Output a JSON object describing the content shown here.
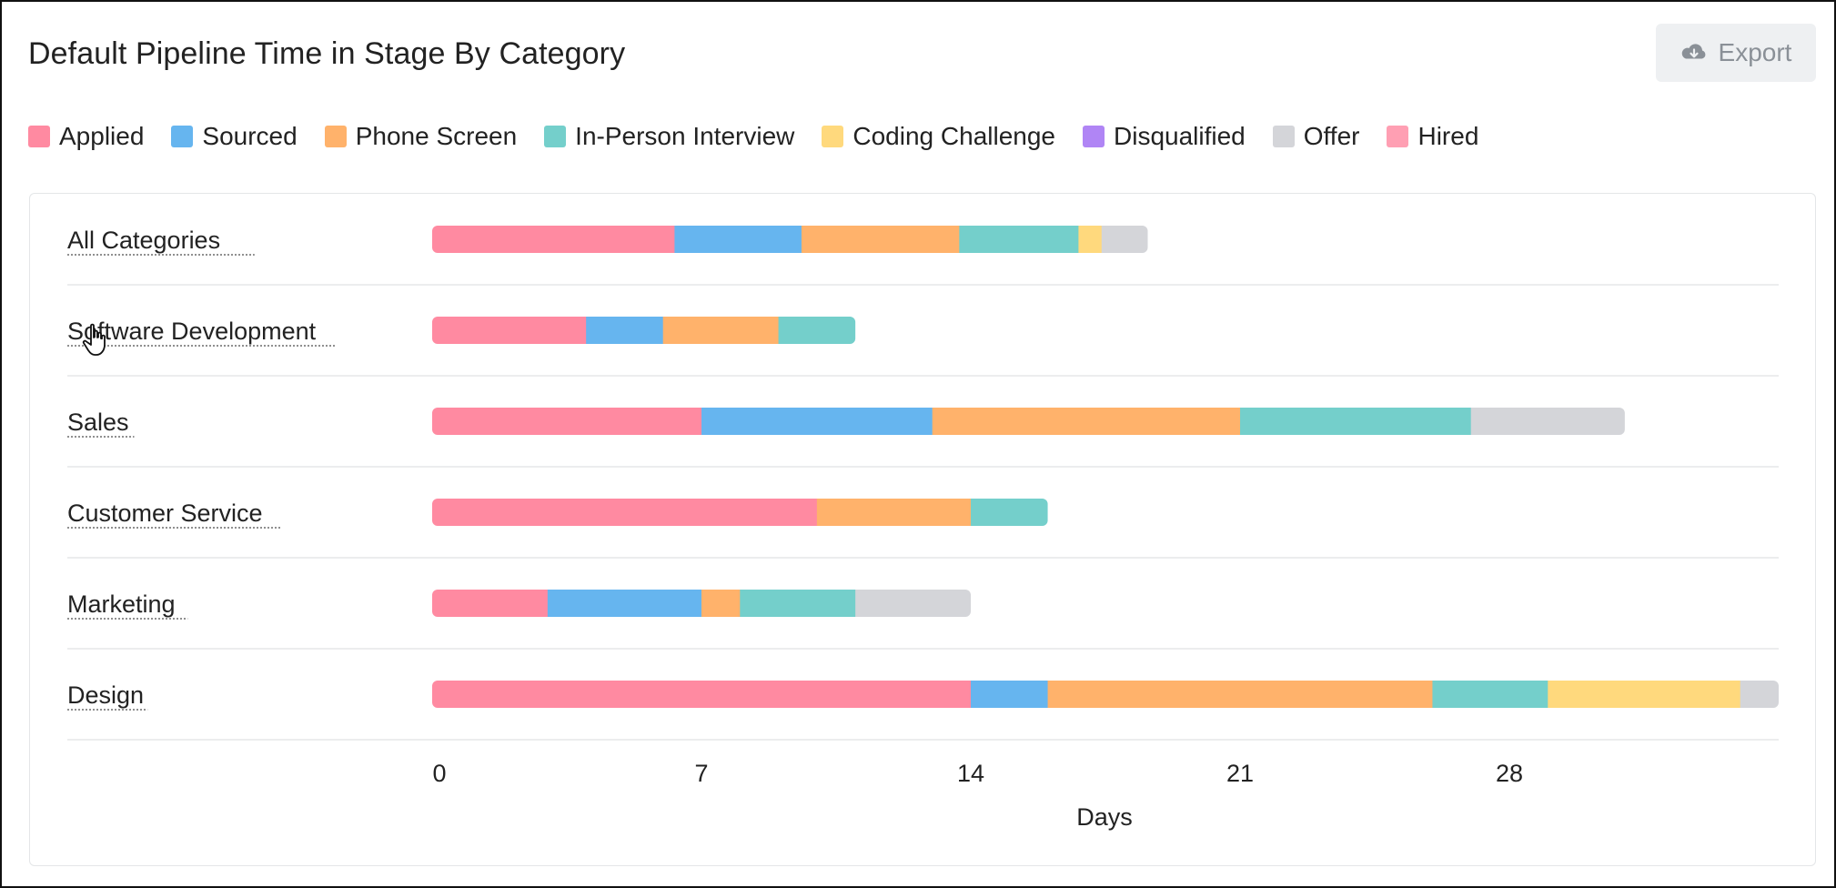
{
  "title": "Default Pipeline Time in Stage By Category",
  "export_label": "Export",
  "colors": {
    "Applied": "#ff8aa1",
    "Sourced": "#66b5ef",
    "Phone Screen": "#ffb26b",
    "In-Person Interview": "#74cfcb",
    "Coding Challenge": "#ffd97d",
    "Disqualified": "#b085f5",
    "Offer": "#d4d5d9",
    "Hired": "#ff9fb3"
  },
  "legend": [
    {
      "label": "Applied",
      "color": "#ff8aa1"
    },
    {
      "label": "Sourced",
      "color": "#66b5ef"
    },
    {
      "label": "Phone Screen",
      "color": "#ffb26b"
    },
    {
      "label": "In-Person Interview",
      "color": "#74cfcb"
    },
    {
      "label": "Coding Challenge",
      "color": "#ffd97d"
    },
    {
      "label": "Disqualified",
      "color": "#b085f5"
    },
    {
      "label": "Offer",
      "color": "#d4d5d9"
    },
    {
      "label": "Hired",
      "color": "#ff9fb3"
    }
  ],
  "chart_data": {
    "type": "bar",
    "orientation": "horizontal",
    "stacked": true,
    "title": "Default Pipeline Time in Stage By Category",
    "xlabel": "Days",
    "ylabel": "",
    "xlim": [
      0,
      35
    ],
    "xticks": [
      0,
      7,
      14,
      21,
      28
    ],
    "categories": [
      "All Categories",
      "Software Development",
      "Sales",
      "Customer Service",
      "Marketing",
      "Design"
    ],
    "series": [
      {
        "name": "Applied",
        "values": [
          6.3,
          4.0,
          7.0,
          10.0,
          3.0,
          14.0
        ]
      },
      {
        "name": "Sourced",
        "values": [
          3.3,
          2.0,
          6.0,
          0,
          4.0,
          2.0
        ]
      },
      {
        "name": "Phone Screen",
        "values": [
          4.1,
          3.0,
          8.0,
          4.0,
          1.0,
          10.0
        ]
      },
      {
        "name": "In-Person Interview",
        "values": [
          3.1,
          2.0,
          6.0,
          2.0,
          3.0,
          3.0
        ]
      },
      {
        "name": "Coding Challenge",
        "values": [
          0.6,
          0,
          0,
          0,
          0,
          5.0
        ]
      },
      {
        "name": "Disqualified",
        "values": [
          0,
          0,
          0,
          0,
          0,
          0
        ]
      },
      {
        "name": "Offer",
        "values": [
          1.2,
          0,
          4.0,
          0,
          3.0,
          1.0
        ]
      },
      {
        "name": "Hired",
        "values": [
          0,
          0,
          0,
          0,
          0,
          0
        ]
      }
    ],
    "legend_position": "top-left",
    "grid": false
  }
}
